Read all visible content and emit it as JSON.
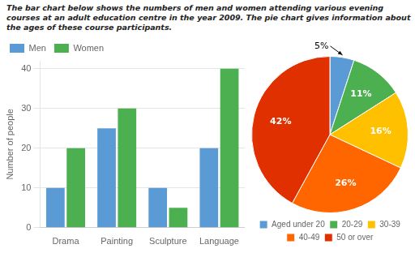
{
  "chart_data": [
    {
      "type": "bar",
      "title": "The bar chart below shows the numbers of men and women attending various evening\ncourses at an adult education centre in the year 2009. The pie chart gives information about\nthe ages of these course participants.",
      "categories": [
        "Drama",
        "Painting",
        "Sculpture",
        "Language"
      ],
      "series": [
        {
          "name": "Men",
          "color": "#5b9bd5",
          "values": [
            10,
            25,
            10,
            20
          ]
        },
        {
          "name": "Women",
          "color": "#4caf50",
          "values": [
            20,
            30,
            5,
            40
          ]
        }
      ],
      "ylabel": "Number of people",
      "ylim": [
        0,
        42
      ],
      "yticks": [
        0,
        10,
        20,
        30,
        40
      ],
      "grid": true,
      "legend": "upper left"
    },
    {
      "type": "pie",
      "categories": [
        "Aged under 20",
        "20-29",
        "30-39",
        "40-49",
        "50 or over"
      ],
      "values": [
        5,
        11,
        16,
        26,
        42
      ],
      "value_labels": [
        "5%",
        "11%",
        "16%",
        "26%",
        "42%"
      ],
      "colors": [
        "#5b9bd5",
        "#4caf50",
        "#ffc000",
        "#ff6600",
        "#e03000"
      ],
      "data_labels": true,
      "legend": "bottom"
    }
  ]
}
